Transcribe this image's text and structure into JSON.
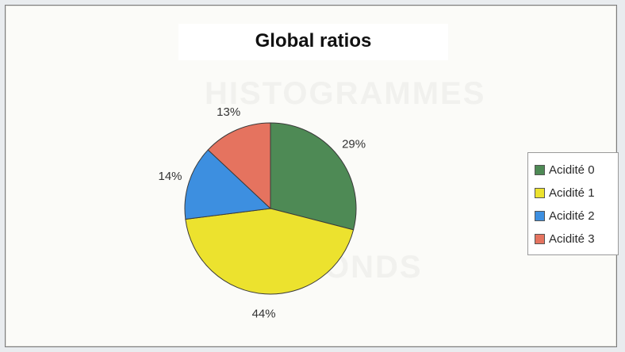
{
  "chart_data": {
    "type": "pie",
    "title": "Global ratios",
    "background_text": [
      "HISTOGRAMMES",
      "PAR FONDS"
    ],
    "series": [
      {
        "name": "Acidité 0",
        "value": 29,
        "label": "29%",
        "color": "#4e8a55"
      },
      {
        "name": "Acidité 1",
        "value": 44,
        "label": "44%",
        "color": "#ece22e"
      },
      {
        "name": "Acidité 2",
        "value": 14,
        "label": "14%",
        "color": "#3d8fe0"
      },
      {
        "name": "Acidité 3",
        "value": 13,
        "label": "13%",
        "color": "#e5735f"
      }
    ],
    "legend_position": "right"
  }
}
